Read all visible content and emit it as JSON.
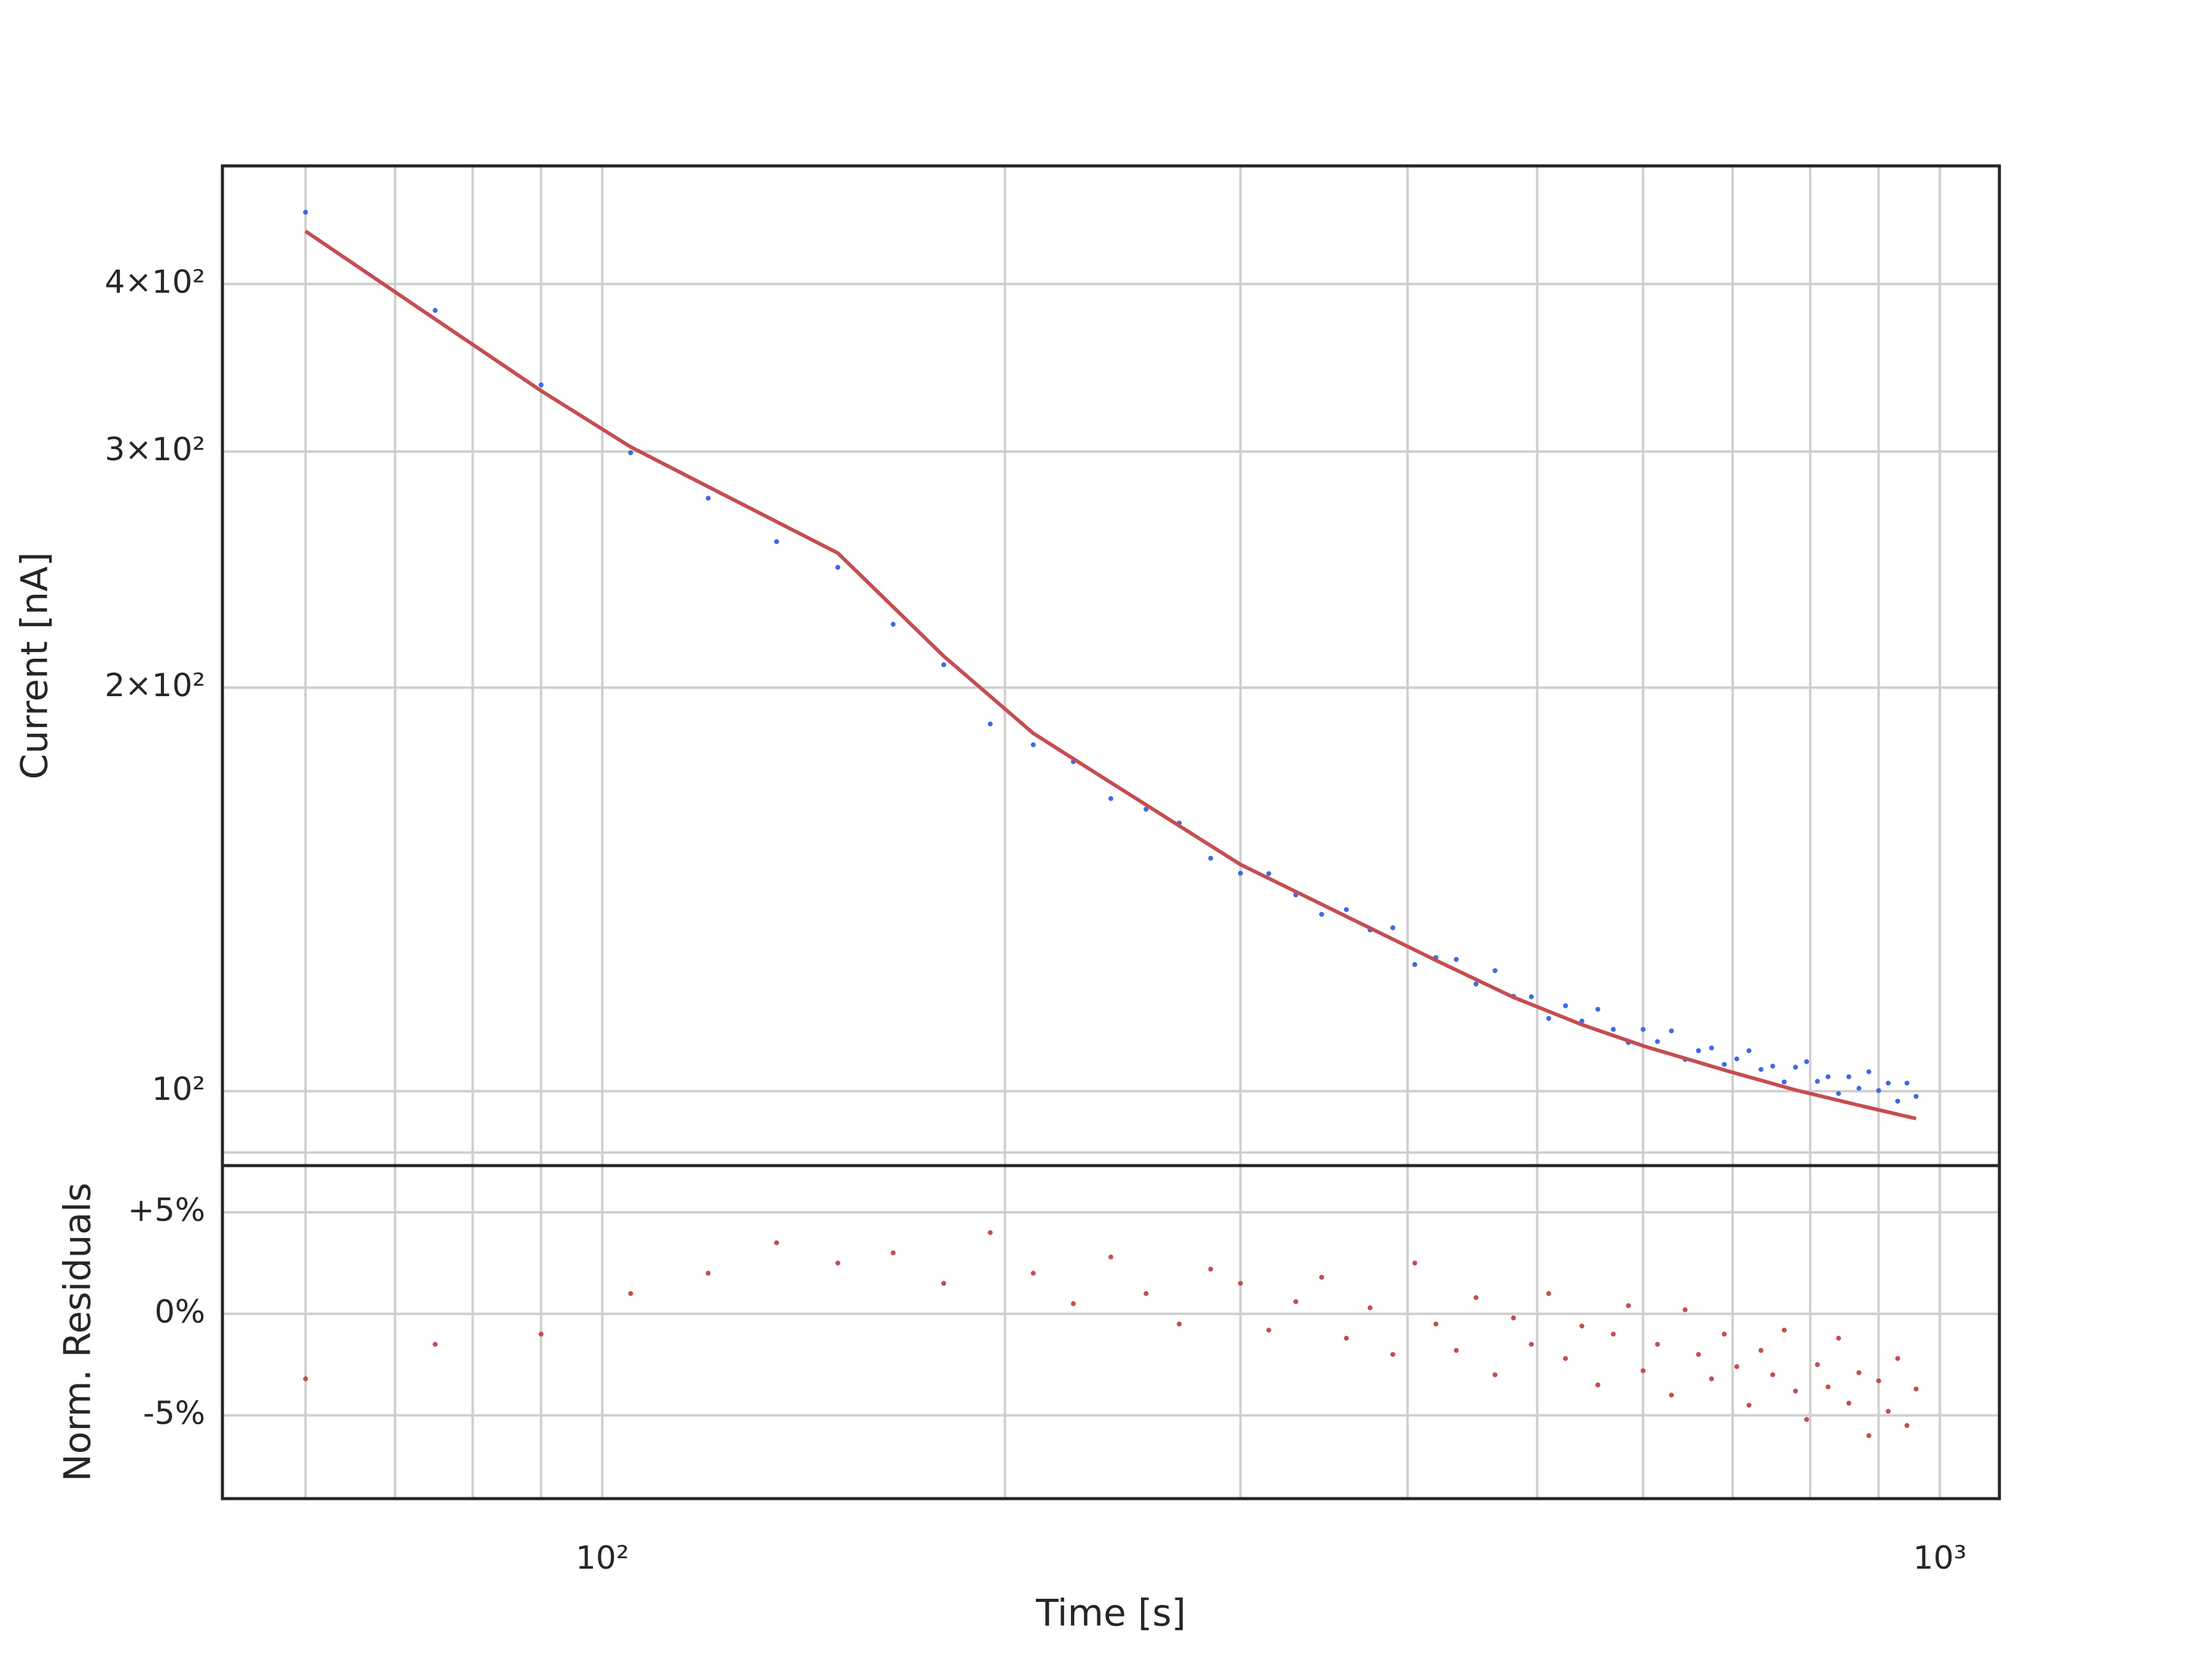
{
  "chart_data": [
    {
      "type": "scatter",
      "ylabel": "Current [nA]",
      "xscale": "log",
      "yscale": "log",
      "grid": true,
      "xlim": [
        52,
        1108
      ],
      "ylim": [
        88,
        490
      ],
      "xgrid": [
        60,
        70,
        80,
        90,
        100,
        200,
        300,
        400,
        500,
        600,
        700,
        800,
        900,
        1000
      ],
      "yticks": [
        {
          "value": 100,
          "label": "10²"
        },
        {
          "value": 200,
          "label": "2×10²"
        },
        {
          "value": 300,
          "label": "3×10²"
        },
        {
          "value": 400,
          "label": "4×10²"
        }
      ],
      "yminorticks": [
        90
      ],
      "series": [
        {
          "type": "scatter",
          "color": "#4169e1",
          "x": [
            60,
            75,
            90,
            105,
            120,
            135,
            150,
            165,
            180,
            195,
            210,
            225,
            240,
            255,
            270,
            285,
            300,
            315,
            330,
            345,
            360,
            375,
            390,
            405,
            420,
            435,
            450,
            465,
            480,
            495,
            510,
            525,
            540,
            555,
            570,
            585,
            600,
            615,
            630,
            645,
            660,
            675,
            690,
            705,
            720,
            735,
            750,
            765,
            780,
            795,
            810,
            825,
            840,
            855,
            870,
            885,
            900,
            915,
            930,
            945,
            960
          ],
          "values": [
            452.5,
            382.3,
            336.4,
            299.4,
            276.9,
            257.0,
            245.9,
            223.0,
            208.0,
            187.9,
            181.3,
            176.1,
            165.3,
            162.3,
            158.5,
            149.2,
            145.4,
            145.3,
            140.1,
            135.5,
            136.6,
            131.9,
            132.4,
            124.3,
            125.8,
            125.4,
            120.2,
            123.0,
            117.7,
            117.6,
            113.3,
            115.8,
            112.8,
            115.1,
            111.2,
            108.7,
            111.2,
            108.9,
            110.9,
            105.6,
            107.2,
            107.7,
            104.7,
            105.7,
            107.2,
            103.8,
            104.4,
            101.6,
            104.2,
            105.2,
            101.7,
            102.5,
            99.6,
            102.5,
            100.5,
            103.4,
            100.1,
            101.4,
            98.3,
            101.4,
            99.1
          ]
        },
        {
          "type": "line",
          "color": "#c44e52",
          "x": [
            60,
            75,
            90,
            105,
            120,
            150,
            180,
            210,
            240,
            300,
            360,
            420,
            480,
            540,
            600,
            690,
            780,
            870,
            960
          ],
          "values": [
            438,
            376.6,
            333,
            302.4,
            282.4,
            252,
            211.1,
            184.9,
            169.9,
            147.6,
            135,
            125.2,
            117.5,
            112.1,
            108.1,
            103.7,
            100.2,
            97.6,
            95.4
          ]
        }
      ]
    },
    {
      "type": "scatter",
      "ylabel": "Norm. Residuals",
      "xlabel": "Time [s]",
      "xscale": "log",
      "grid": true,
      "xlim": [
        52,
        1108
      ],
      "ylim": [
        -9.1,
        7.3
      ],
      "xgrid": [
        60,
        70,
        80,
        90,
        100,
        200,
        300,
        400,
        500,
        600,
        700,
        800,
        900,
        1000
      ],
      "xticks": [
        {
          "value": 100,
          "label": "10²"
        },
        {
          "value": 1000,
          "label": "10³"
        }
      ],
      "yticks": [
        {
          "value": -5,
          "label": "-5%"
        },
        {
          "value": 0,
          "label": "0%"
        },
        {
          "value": 5,
          "label": "+5%"
        }
      ],
      "series": [
        {
          "type": "scatter",
          "color": "#c44e52",
          "x": [
            60,
            75,
            90,
            105,
            120,
            135,
            150,
            165,
            180,
            195,
            210,
            225,
            240,
            255,
            270,
            285,
            300,
            315,
            330,
            345,
            360,
            375,
            390,
            405,
            420,
            435,
            450,
            465,
            480,
            495,
            510,
            525,
            540,
            555,
            570,
            585,
            600,
            615,
            630,
            645,
            660,
            675,
            690,
            705,
            720,
            735,
            750,
            765,
            780,
            795,
            810,
            825,
            840,
            855,
            870,
            885,
            900,
            915,
            930,
            945,
            960
          ],
          "values": [
            -3.2,
            -1.5,
            -1.0,
            1.0,
            2.0,
            3.5,
            2.5,
            3.0,
            1.5,
            4.0,
            2.0,
            0.5,
            2.8,
            1.0,
            -0.5,
            2.2,
            1.5,
            -0.8,
            0.6,
            1.8,
            -1.2,
            0.3,
            -2.0,
            2.5,
            -0.5,
            -1.8,
            0.8,
            -3.0,
            -0.2,
            -1.5,
            1.0,
            -2.2,
            -0.6,
            -3.5,
            -1.0,
            0.4,
            -2.8,
            -1.5,
            -4.0,
            0.2,
            -2.0,
            -3.2,
            -1.0,
            -2.6,
            -4.5,
            -1.8,
            -3.0,
            -0.8,
            -3.8,
            -5.2,
            -2.5,
            -3.6,
            -1.2,
            -4.4,
            -2.9,
            -6.0,
            -3.3,
            -4.8,
            -2.2,
            -5.5,
            -3.7
          ]
        }
      ]
    }
  ]
}
